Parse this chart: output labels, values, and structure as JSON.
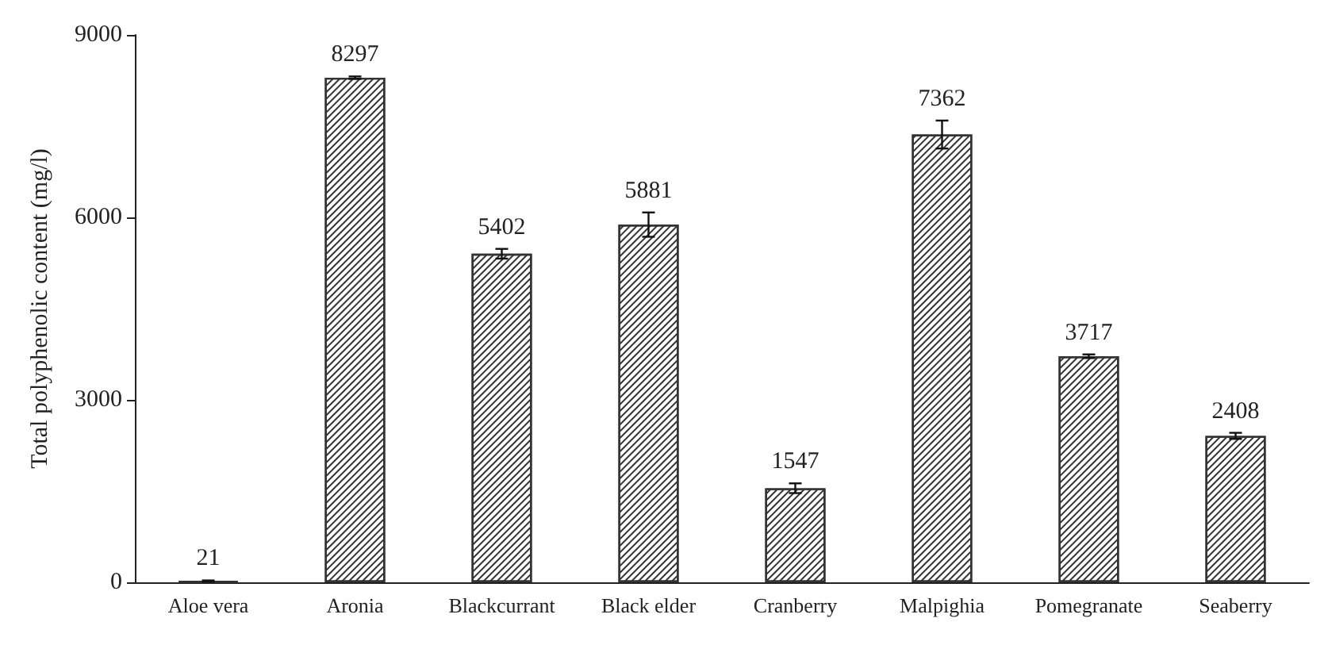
{
  "chart_data": {
    "type": "bar",
    "ylabel": "Total polyphenolic content (mg/l)",
    "categories": [
      "Aloe vera",
      "Aronia",
      "Blackcurrant",
      "Black elder",
      "Cranberry",
      "Malpighia",
      "Pomegranate",
      "Seaberry"
    ],
    "values": [
      21,
      8297,
      5402,
      5881,
      1547,
      7362,
      3717,
      2408
    ],
    "errors": [
      10,
      20,
      80,
      200,
      80,
      230,
      30,
      50
    ],
    "color": "#333333",
    "ylim": [
      0,
      9000
    ],
    "yticks": [
      0,
      3000,
      6000,
      9000
    ],
    "grid": false,
    "data_labels": true
  }
}
